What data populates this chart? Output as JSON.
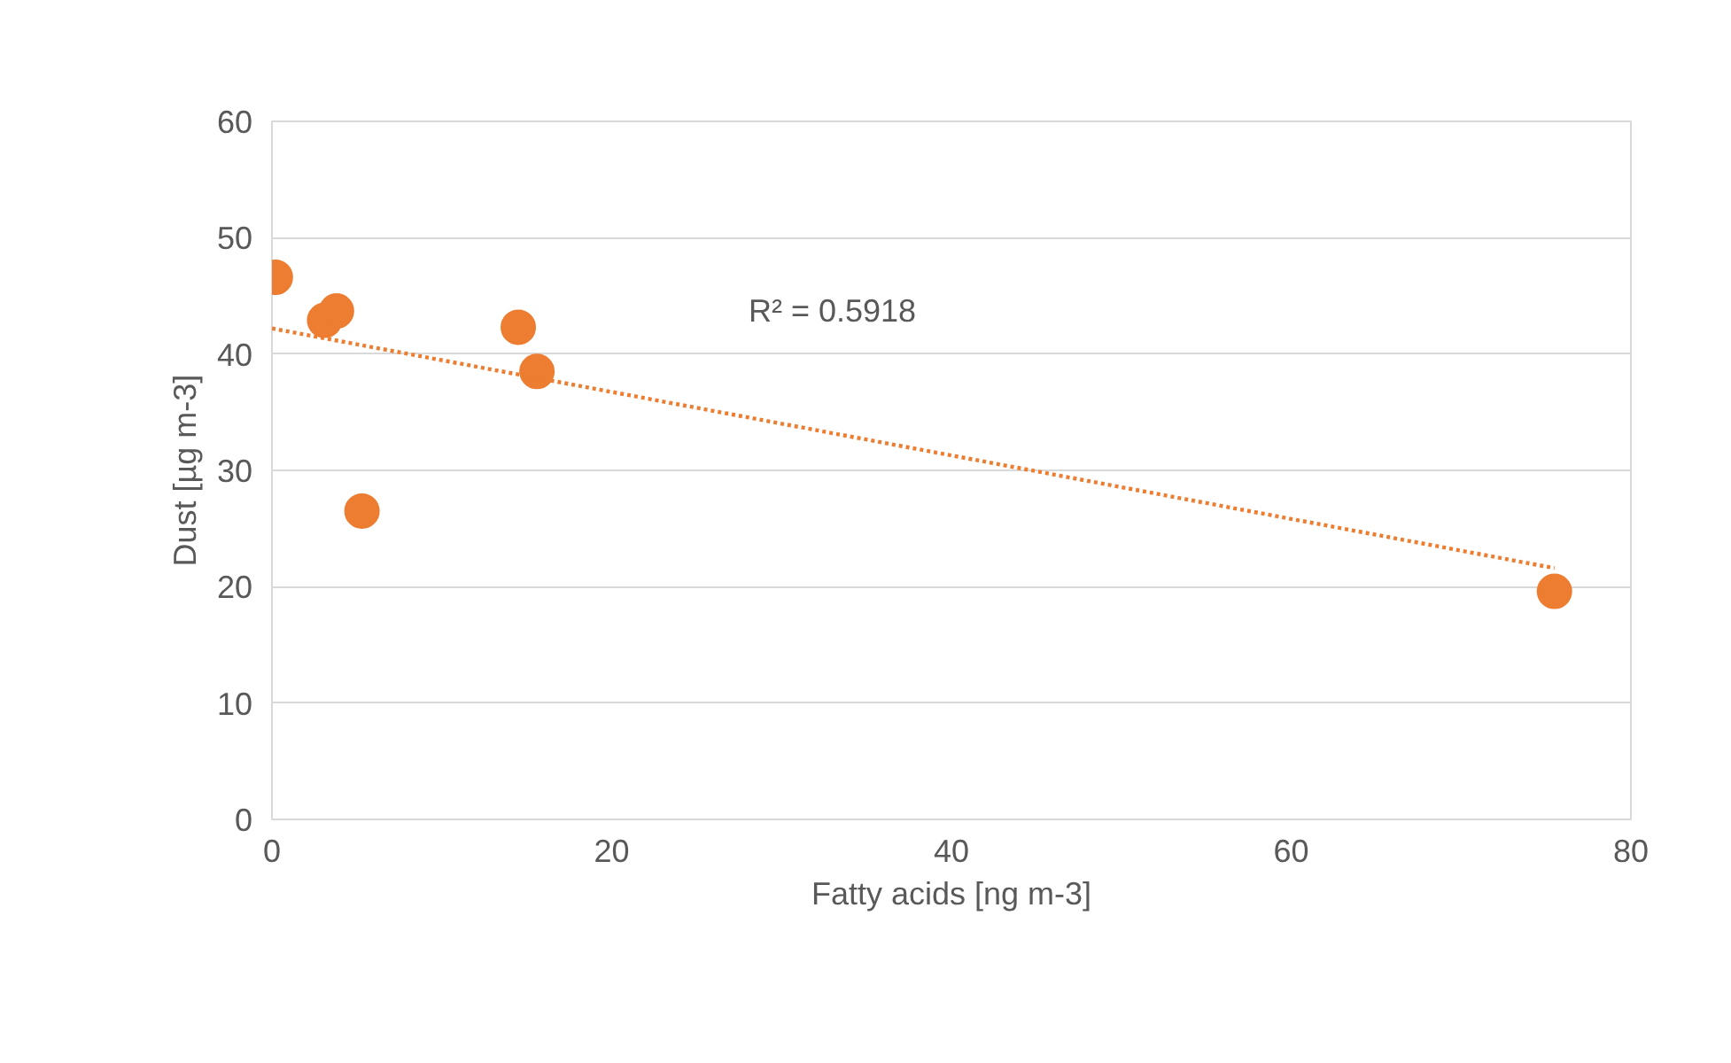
{
  "chart_data": {
    "type": "scatter",
    "xlabel": "Fatty acids [ng m-3]",
    "ylabel": "Dust [µg m-3]",
    "xlim": [
      0,
      80
    ],
    "xticks": [
      0,
      20,
      40,
      60,
      80
    ],
    "ylim": [
      0,
      60
    ],
    "yticks": [
      0,
      10,
      20,
      30,
      40,
      50,
      60
    ],
    "grid": "y",
    "series": [
      {
        "marker": "circle",
        "color": "#ed7d31",
        "x": [
          0.2,
          3.1,
          3.8,
          5.3,
          14.5,
          15.6,
          75.5
        ],
        "values": [
          46.6,
          42.9,
          43.7,
          26.5,
          42.3,
          38.5,
          19.6
        ]
      },
      {
        "type": "line",
        "color": "#ed7d31",
        "line_style": "dotted",
        "x": [
          0,
          75.5
        ],
        "values": [
          42.2,
          21.6
        ]
      }
    ],
    "annotations": [
      "R² = 0.5918"
    ]
  }
}
